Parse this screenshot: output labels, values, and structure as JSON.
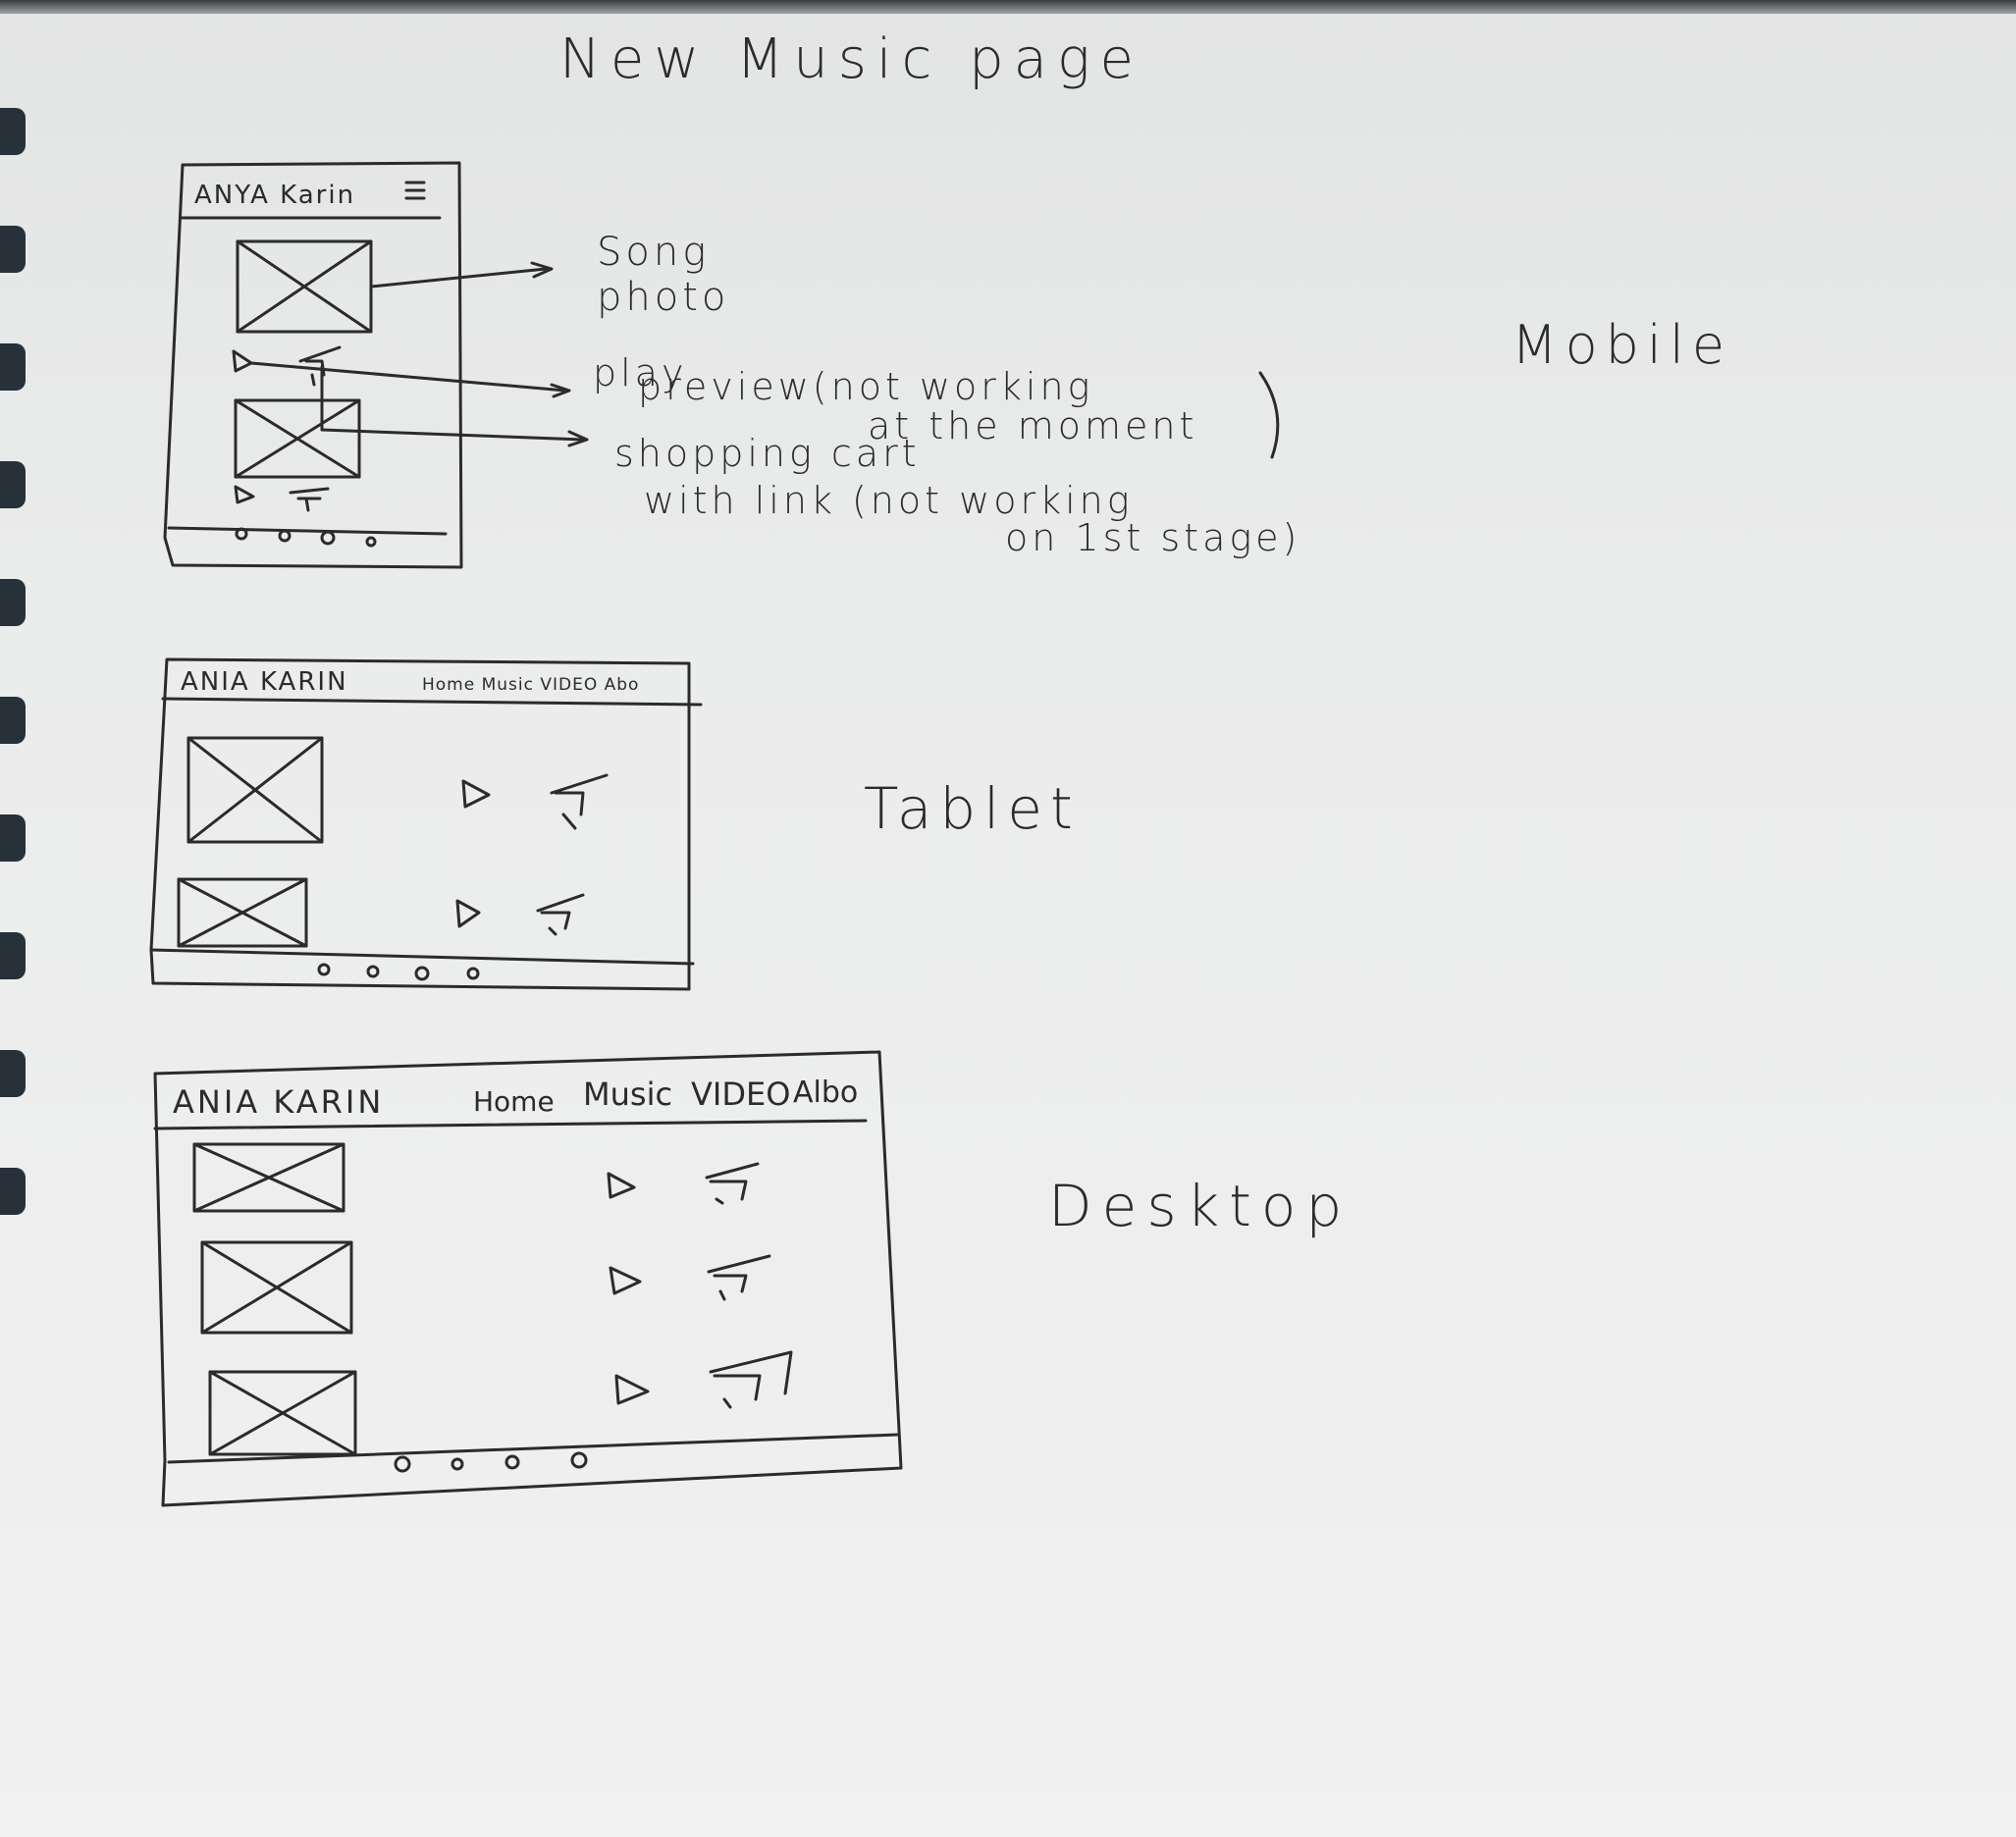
{
  "title": "New Music page",
  "colors": {
    "ink": "#2b2b2b",
    "paper": "#ebecec",
    "spiral": "#27313a"
  },
  "mobile": {
    "label": "Mobile",
    "brand": "ANYA Karin",
    "menu_icon": "hamburger-icon",
    "annotations": {
      "song_photo_1": "Song",
      "song_photo_2": "photo",
      "play_1": "play",
      "play_2": "preview(not working",
      "play_3": "at the moment",
      "cart_1": "shopping cart",
      "cart_2": "with link (not working",
      "cart_3": "on 1st stage)"
    }
  },
  "tablet": {
    "label": "Tablet",
    "brand": "ANIA KARIN",
    "nav": "Home Music VIDEO Abo"
  },
  "desktop": {
    "label": "Desktop",
    "brand": "ANIA KARIN",
    "nav": [
      "Home",
      "Music",
      "VIDEO",
      "Albo"
    ]
  }
}
